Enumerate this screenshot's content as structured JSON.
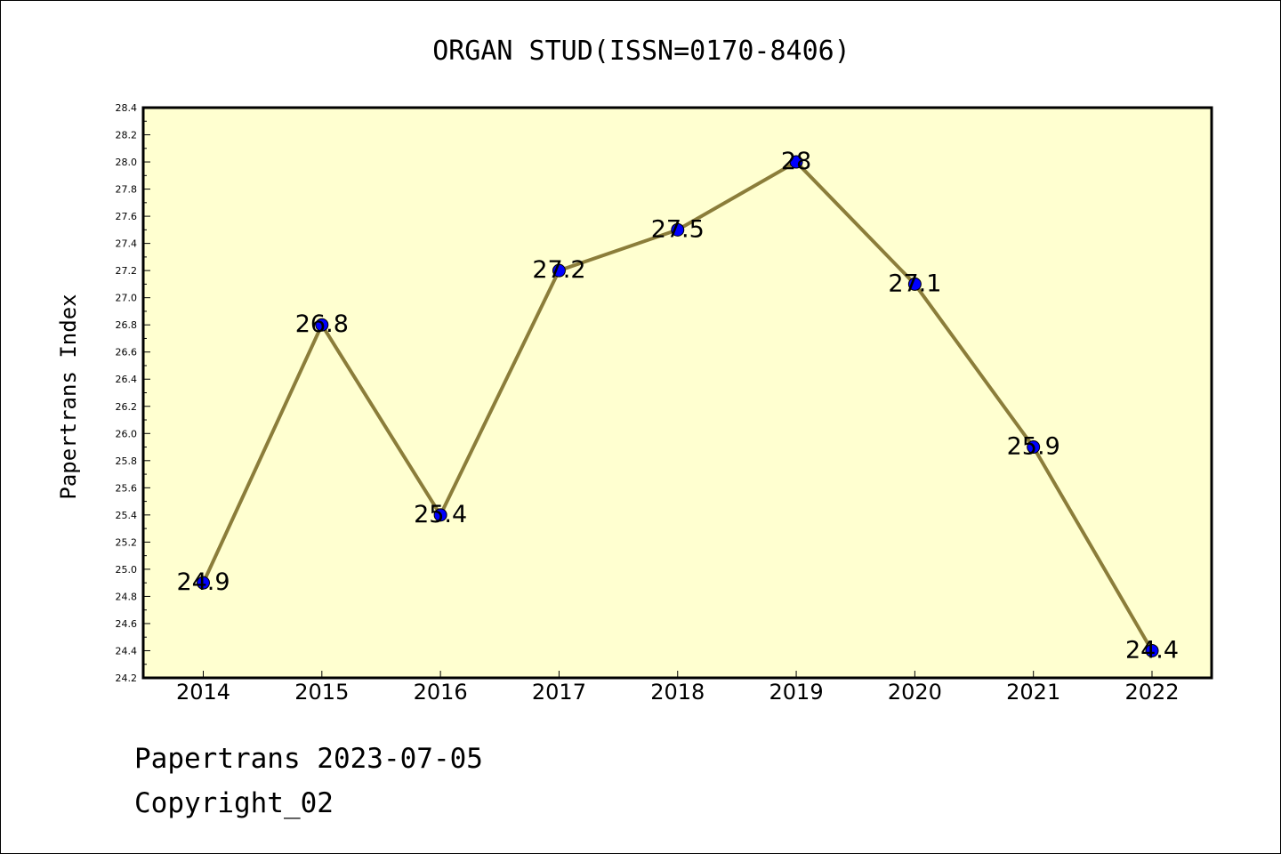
{
  "chart_data": {
    "type": "line",
    "title": "ORGAN STUD(ISSN=0170-8406)",
    "xlabel": "",
    "ylabel": "Papertrans Index",
    "categories": [
      "2014",
      "2015",
      "2016",
      "2017",
      "2018",
      "2019",
      "2020",
      "2021",
      "2022"
    ],
    "series": [
      {
        "values": [
          24.9,
          26.8,
          25.4,
          27.2,
          27.5,
          28.0,
          27.1,
          25.9,
          24.4
        ],
        "data_labels": [
          "24.9",
          "26.8",
          "25.4",
          "27.2",
          "27.5",
          "28",
          "27.1",
          "25.9",
          "24.4"
        ]
      }
    ],
    "ylim": [
      24.2,
      28.4
    ],
    "yticks": [
      "24.2",
      "24.4",
      "24.6",
      "24.8",
      "25.0",
      "25.2",
      "25.4",
      "25.6",
      "25.8",
      "26.0",
      "26.2",
      "26.4",
      "26.6",
      "26.8",
      "27.0",
      "27.2",
      "27.4",
      "27.6",
      "27.8",
      "28.0",
      "28.2",
      "28.4"
    ],
    "grid": false,
    "legend": "none",
    "colors": {
      "line": "#8b7d3a",
      "marker": "#0000ff",
      "plot_background": "#ffffd0"
    }
  },
  "footer": {
    "line1": "Papertrans 2023-07-05",
    "line2": "Copyright_02"
  }
}
